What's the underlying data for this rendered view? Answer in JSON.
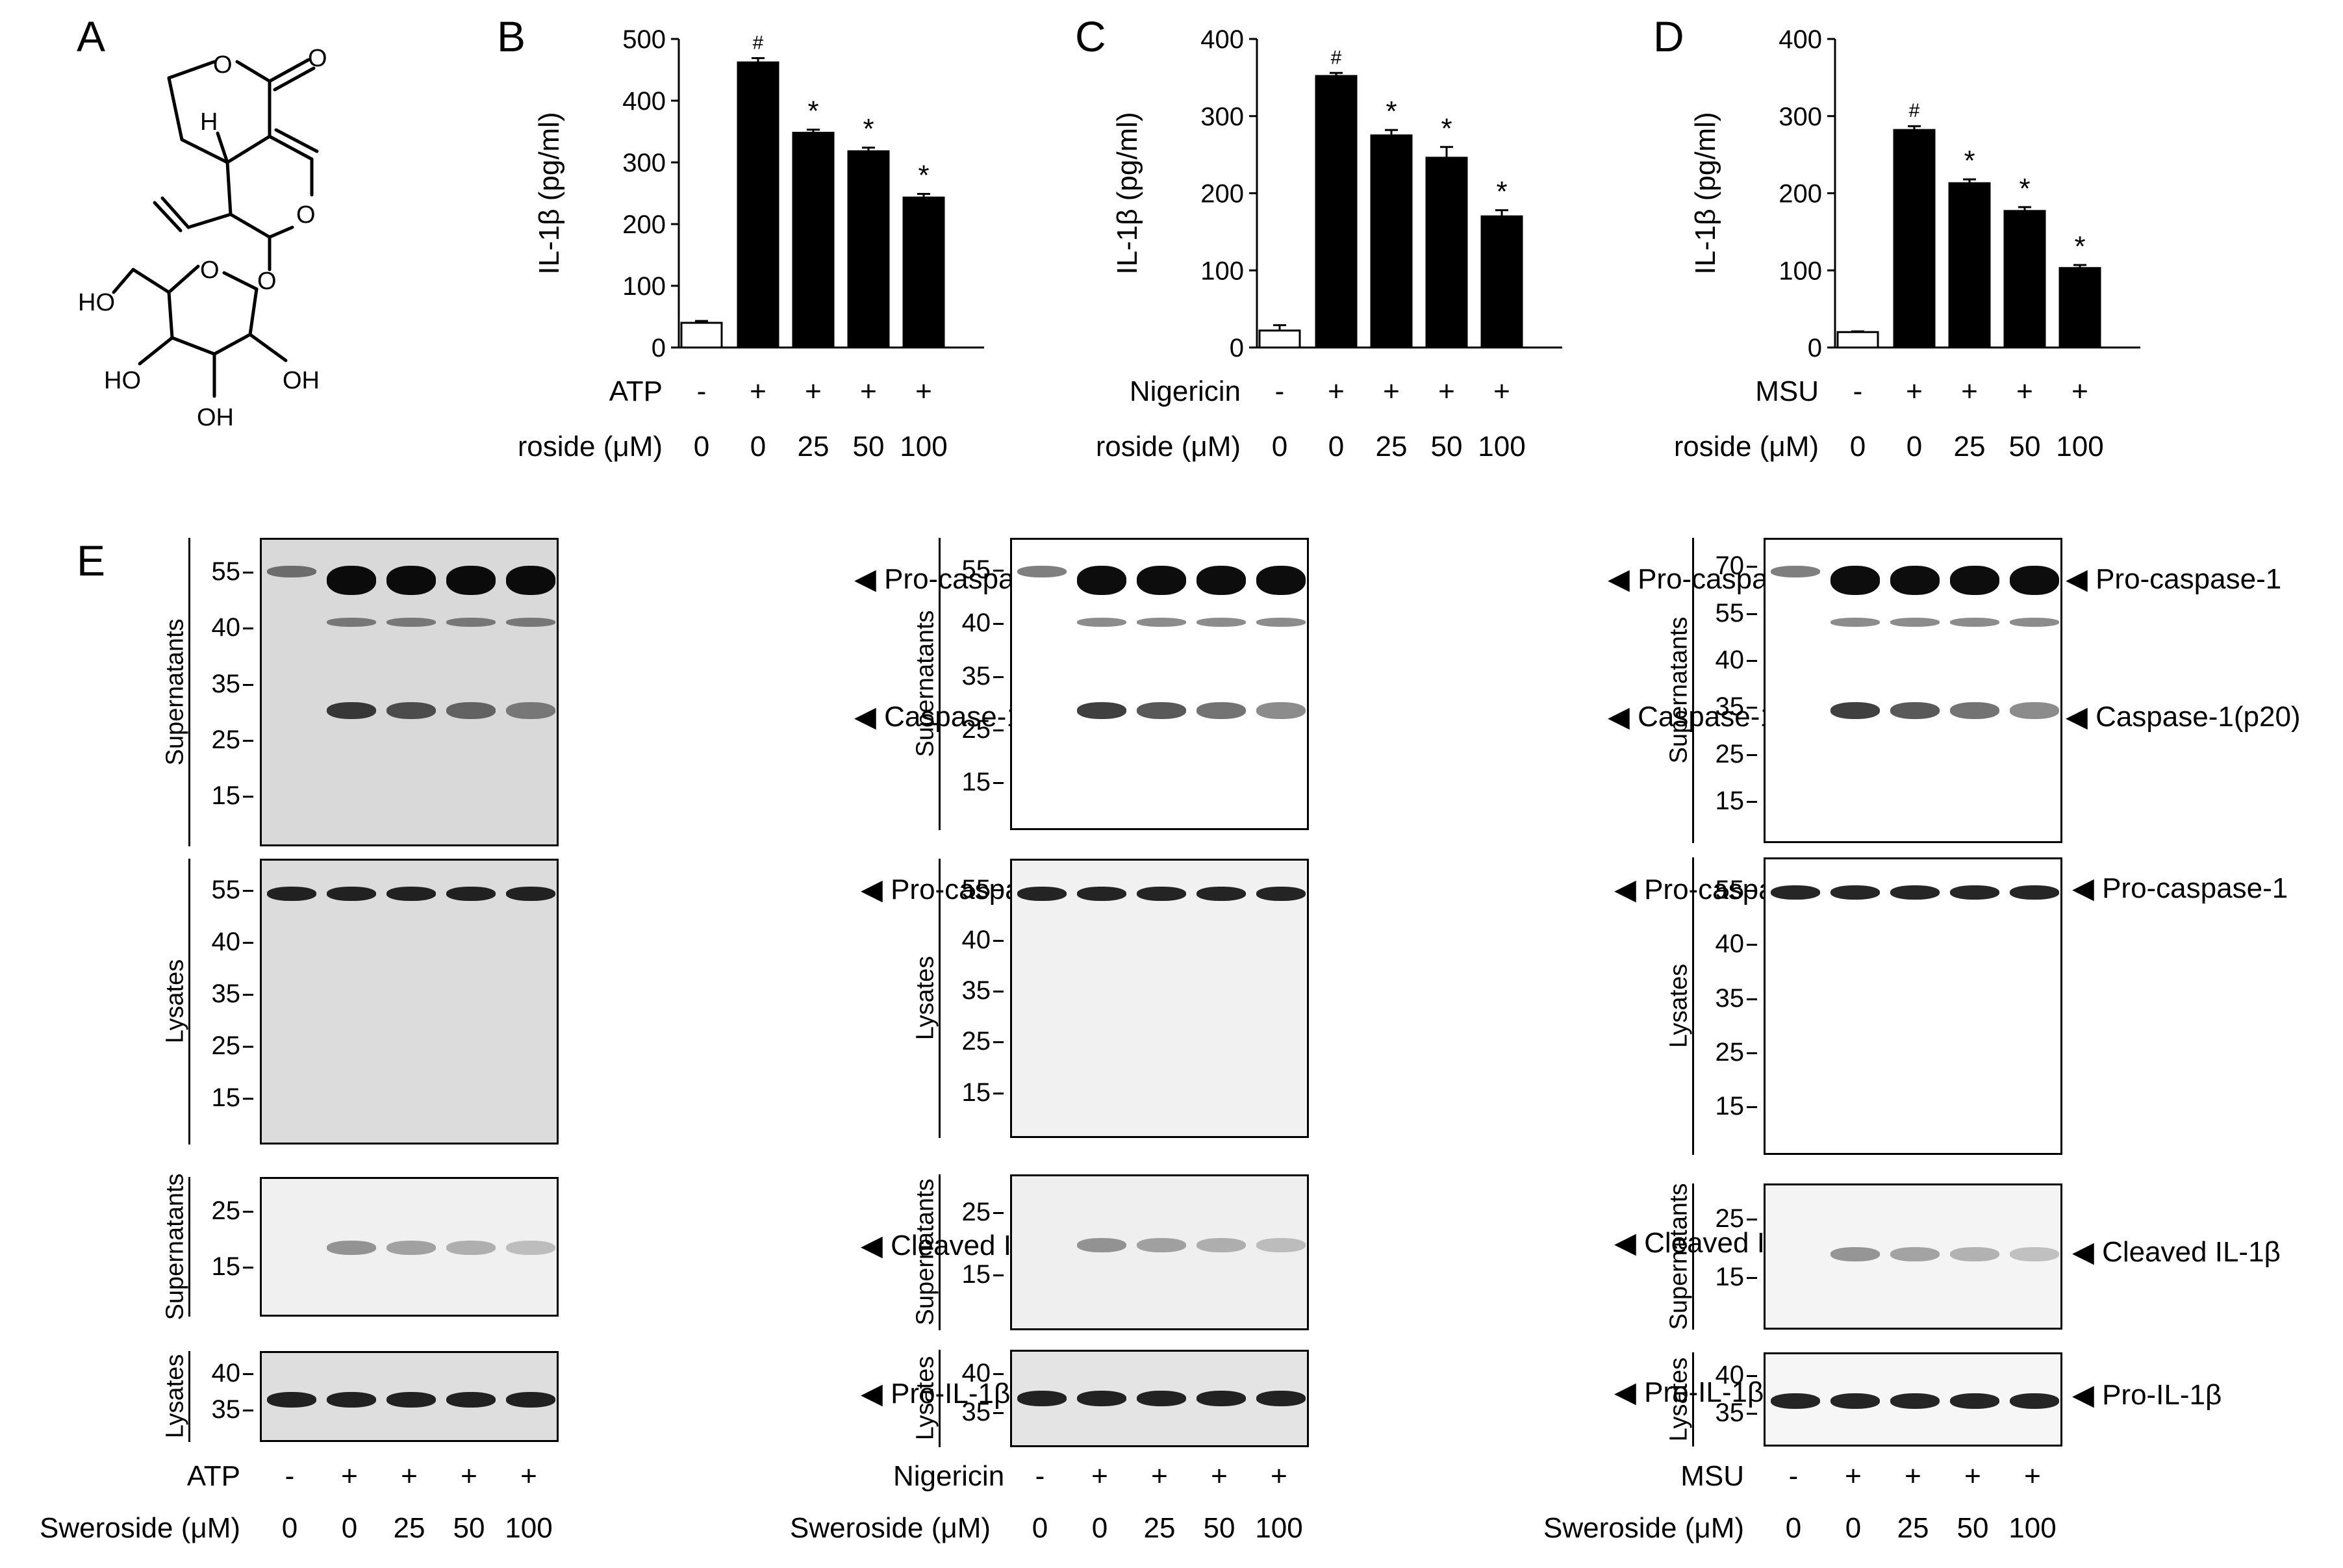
{
  "panel_letters": {
    "A": "A",
    "B": "B",
    "C": "C",
    "D": "D",
    "E": "E"
  },
  "structure": {
    "labels": {
      "oxo": "O",
      "ring_o": "O",
      "h": "H",
      "pyran_o": "O",
      "glyc_o": "O",
      "sugar_o": "O",
      "ho_top": "HO",
      "ho_left": "HO",
      "oh_right": "OH",
      "oh_bottom": "OH"
    }
  },
  "chart_data": [
    {
      "type": "bar",
      "panel": "B",
      "ylabel": "IL-1β (pg/ml)",
      "ylim": [
        0,
        500
      ],
      "yticks": [
        0,
        100,
        200,
        300,
        400,
        500
      ],
      "stimulus": "ATP",
      "stim_row": [
        "-",
        "+",
        "+",
        "+",
        "+"
      ],
      "dose_label": "Sweroside (μM)",
      "doses": [
        "0",
        "0",
        "25",
        "50",
        "100"
      ],
      "values": [
        40,
        462,
        348,
        318,
        243
      ],
      "errors": [
        3,
        7,
        5,
        6,
        6
      ],
      "annotations": [
        "",
        "#",
        "*",
        "*",
        "*"
      ],
      "fills": [
        "#ffffff",
        "#000000",
        "#000000",
        "#000000",
        "#000000"
      ]
    },
    {
      "type": "bar",
      "panel": "C",
      "ylabel": "IL-1β (pg/ml)",
      "ylim": [
        0,
        400
      ],
      "yticks": [
        0,
        100,
        200,
        300,
        400
      ],
      "stimulus": "Nigericin",
      "stim_row": [
        "-",
        "+",
        "+",
        "+",
        "+"
      ],
      "dose_label": "Sweroside (μM)",
      "doses": [
        "0",
        "0",
        "25",
        "50",
        "100"
      ],
      "values": [
        22,
        352,
        275,
        246,
        170
      ],
      "errors": [
        7,
        4,
        7,
        14,
        8
      ],
      "annotations": [
        "",
        "#",
        "*",
        "*",
        "*"
      ],
      "fills": [
        "#ffffff",
        "#000000",
        "#000000",
        "#000000",
        "#000000"
      ]
    },
    {
      "type": "bar",
      "panel": "D",
      "ylabel": "IL-1β (pg/ml)",
      "ylim": [
        0,
        400
      ],
      "yticks": [
        0,
        100,
        200,
        300,
        400
      ],
      "stimulus": "MSU",
      "stim_row": [
        "-",
        "+",
        "+",
        "+",
        "+"
      ],
      "dose_label": "Sweroside (μM)",
      "doses": [
        "0",
        "0",
        "25",
        "50",
        "100"
      ],
      "values": [
        20,
        282,
        213,
        177,
        103
      ],
      "errors": [
        1,
        5,
        5,
        5,
        4
      ],
      "annotations": [
        "",
        "#",
        "*",
        "*",
        "*"
      ],
      "fills": [
        "#ffffff",
        "#000000",
        "#000000",
        "#000000",
        "#000000"
      ]
    }
  ],
  "blots": {
    "section_labels": {
      "supernatants": "Supernatants",
      "lysates": "Lysates"
    },
    "bands": {
      "pro_casp": "Pro-caspase-1",
      "casp_p20": "Caspase-1(p20)",
      "cleaved_il1b": "Cleaved IL-1β",
      "pro_il1b": "Pro-IL-1β"
    },
    "columns": [
      {
        "stimulus": "ATP",
        "stim_row": [
          "-",
          "+",
          "+",
          "+",
          "+"
        ],
        "dose_label": "Sweroside (μM)",
        "doses": [
          "0",
          "0",
          "25",
          "50",
          "100"
        ],
        "mw_sup": [
          "55",
          "40",
          "35",
          "25",
          "15"
        ],
        "mw_lys": [
          "55",
          "40",
          "35",
          "25",
          "15"
        ],
        "mw_il_sup": [
          "25",
          "15"
        ],
        "mw_il_lys": [
          "40",
          "35"
        ]
      },
      {
        "stimulus": "Nigericin",
        "stim_row": [
          "-",
          "+",
          "+",
          "+",
          "+"
        ],
        "dose_label": "Sweroside (μM)",
        "doses": [
          "0",
          "0",
          "25",
          "50",
          "100"
        ],
        "mw_sup": [
          "55",
          "40",
          "35",
          "25",
          "15"
        ],
        "mw_lys": [
          "55",
          "40",
          "35",
          "25",
          "15"
        ],
        "mw_il_sup": [
          "25",
          "15"
        ],
        "mw_il_lys": [
          "40",
          "35"
        ]
      },
      {
        "stimulus": "MSU",
        "stim_row": [
          "-",
          "+",
          "+",
          "+",
          "+"
        ],
        "dose_label": "Sweroside (μM)",
        "doses": [
          "0",
          "0",
          "25",
          "50",
          "100"
        ],
        "mw_sup": [
          "70",
          "55",
          "40",
          "35",
          "25",
          "15"
        ],
        "mw_lys": [
          "55",
          "40",
          "35",
          "25",
          "15"
        ],
        "mw_il_sup": [
          "25",
          "15"
        ],
        "mw_il_lys": [
          "40",
          "35"
        ]
      }
    ]
  }
}
